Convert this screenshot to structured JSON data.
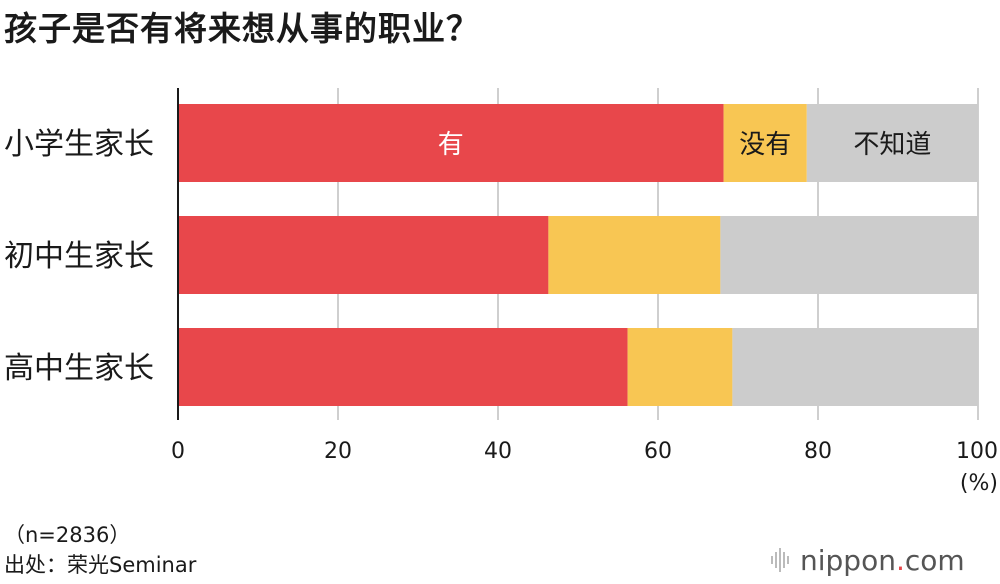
{
  "title": "孩子是否有将来想从事的职业？",
  "chart_data": {
    "type": "bar",
    "orientation": "horizontal",
    "stacked": true,
    "categories": [
      "小学生家长",
      "初中生家长",
      "高中生家长"
    ],
    "series": [
      {
        "name": "有",
        "color": "#e8474b",
        "values": [
          68.2,
          46.3,
          56.2
        ]
      },
      {
        "name": "没有",
        "color": "#f8c653",
        "values": [
          10.4,
          21.5,
          13.1
        ]
      },
      {
        "name": "不知道",
        "color": "#cccccc",
        "values": [
          21.4,
          32.2,
          30.7
        ]
      }
    ],
    "xlim": [
      0,
      100
    ],
    "xticks": [
      "0",
      "20",
      "40",
      "60",
      "80",
      "100"
    ],
    "xunit": "(%)",
    "grid": true,
    "series_labels_on": "first bar"
  },
  "notes": {
    "sample": "（n=2836）",
    "source": "出处：荣光Seminar"
  },
  "brand": {
    "name": "nippon",
    "dot": ".",
    "tld": "com"
  }
}
